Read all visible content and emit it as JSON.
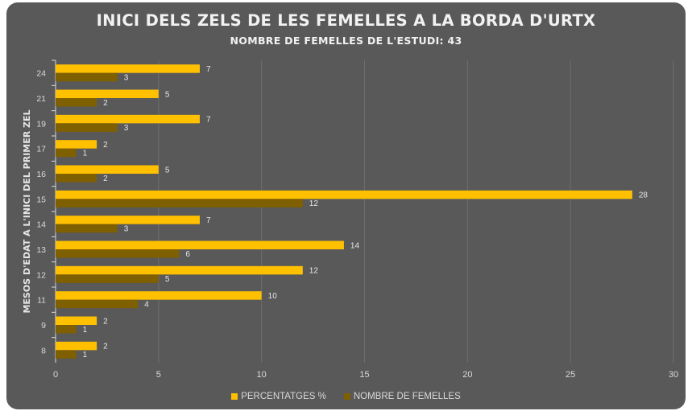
{
  "chart_data": {
    "type": "bar",
    "orientation": "horizontal",
    "title": "INICI DELS ZELS DE LES FEMELLES A LA BORDA D'URTX",
    "subtitle": "NOMBRE DE FEMELLES DE L'ESTUDI: 43",
    "ylabel": "MESOS D'EDAT A L'INICI DEL PRIMER ZEL",
    "xlabel": "",
    "categories": [
      "24",
      "21",
      "19",
      "17",
      "16",
      "15",
      "14",
      "13",
      "12",
      "11",
      "9",
      "8"
    ],
    "series": [
      {
        "name": "PERCENTATGES %",
        "color": "#ffc000",
        "values": [
          7,
          5,
          7,
          2,
          5,
          28,
          7,
          14,
          12,
          10,
          2,
          2
        ]
      },
      {
        "name": "NOMBRE DE FEMELLES",
        "color": "#7f6000",
        "values": [
          3,
          2,
          3,
          1,
          2,
          12,
          3,
          6,
          5,
          4,
          1,
          1
        ]
      }
    ],
    "xlim": [
      0,
      30
    ],
    "xticks": [
      "0",
      "5",
      "10",
      "15",
      "20",
      "25",
      "30"
    ],
    "grid": true,
    "legend_position": "bottom"
  },
  "colors": {
    "background": "#595959",
    "grid": "#6e6e6e",
    "axis": "#d9d9d9",
    "text": "#d9d9d9",
    "label": "#e6e6e6"
  }
}
